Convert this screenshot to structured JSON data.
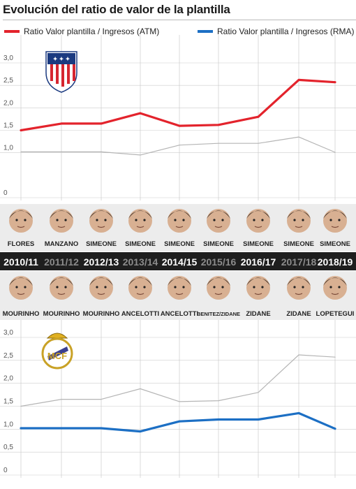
{
  "title": "Evolución del ratio de valor de la plantilla",
  "legend": [
    {
      "label": "Ratio Valor plantilla / Ingresos (ATM)",
      "color": "#e3232c"
    },
    {
      "label": "Ratio Valor plantilla / Ingresos (RMA)",
      "color": "#1c6fc4"
    }
  ],
  "chart_data": [
    {
      "type": "line",
      "ytick_labels": [
        "3,0",
        "2,5",
        "2,0",
        "1,5",
        "1,0",
        "0"
      ],
      "ylim": [
        0,
        3.0
      ],
      "grid": true,
      "logo": "atletico-madrid-crest",
      "categories": [
        "2010/11",
        "2011/12",
        "2012/13",
        "2013/14",
        "2014/15",
        "2015/16",
        "2016/17",
        "2017/18",
        "2018/19"
      ],
      "series": [
        {
          "name": "Ratio Valor plantilla / Ingresos (ATM)",
          "color": "#e3232c",
          "values": [
            1.5,
            1.65,
            1.65,
            1.88,
            1.6,
            1.62,
            1.8,
            2.62,
            2.57
          ]
        },
        {
          "color": "#b5b5b5",
          "values": [
            1.02,
            1.02,
            1.02,
            0.95,
            1.17,
            1.21,
            1.21,
            1.35,
            1.01
          ]
        }
      ]
    },
    {
      "type": "line",
      "ytick_labels": [
        "3,0",
        "2,5",
        "2,0",
        "1,5",
        "1,0",
        "0,5",
        "0"
      ],
      "ylim": [
        0,
        3.0
      ],
      "grid": true,
      "logo": "real-madrid-crest",
      "categories": [
        "2010/11",
        "2011/12",
        "2012/13",
        "2013/14",
        "2014/15",
        "2015/16",
        "2016/17",
        "2017/18",
        "2018/19"
      ],
      "series": [
        {
          "name": "Ratio Valor plantilla / Ingresos (RMA)",
          "color": "#1c6fc4",
          "values": [
            1.02,
            1.02,
            1.02,
            0.95,
            1.17,
            1.21,
            1.21,
            1.35,
            1.01
          ]
        },
        {
          "color": "#b5b5b5",
          "values": [
            1.5,
            1.65,
            1.65,
            1.88,
            1.6,
            1.62,
            1.8,
            2.62,
            2.57
          ]
        }
      ]
    }
  ],
  "seasons": [
    "2010/11",
    "2011/12",
    "2012/13",
    "2013/14",
    "2014/15",
    "2015/16",
    "2016/17",
    "2017/18",
    "2018/19"
  ],
  "atm_coaches": [
    "FLORES",
    "MANZANO",
    "SIMEONE",
    "SIMEONE",
    "SIMEONE",
    "SIMEONE",
    "SIMEONE",
    "SIMEONE",
    "SIMEONE"
  ],
  "rma_coaches": [
    "MOURINHO",
    "MOURINHO",
    "MOURINHO",
    "ANCELOTTI",
    "ANCELOTTI",
    "BENITEZ/ZIDANE",
    "ZIDANE",
    "ZIDANE",
    "LOPETEGUI"
  ],
  "colors": {
    "season_band": "#1e1e1e",
    "season_bold": "#ffffff",
    "season_dim": "#8c8c8c",
    "coach_band": "#ececec",
    "grid": "#cccccc",
    "axis_text": "#555555"
  }
}
